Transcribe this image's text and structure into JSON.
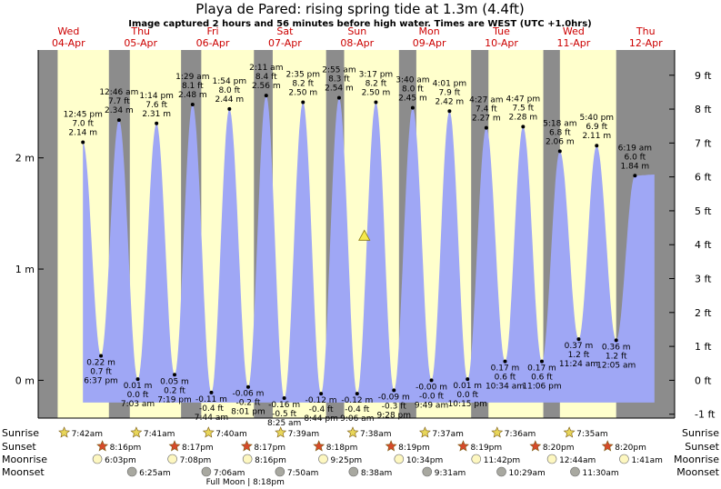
{
  "header": {
    "title": "Playa de Pared: rising  spring tide at 1.3m (4.4ft)",
    "subtitle": "Image captured 2 hours and 56 minutes before high water. Times are WEST (UTC +1.0hrs)"
  },
  "chart_data": {
    "type": "area",
    "days": [
      {
        "name": "Wed",
        "date": "04-Apr"
      },
      {
        "name": "Thu",
        "date": "05-Apr"
      },
      {
        "name": "Fri",
        "date": "06-Apr"
      },
      {
        "name": "Sat",
        "date": "07-Apr"
      },
      {
        "name": "Sun",
        "date": "08-Apr"
      },
      {
        "name": "Mon",
        "date": "09-Apr"
      },
      {
        "name": "Tue",
        "date": "10-Apr"
      },
      {
        "name": "Wed",
        "date": "11-Apr"
      },
      {
        "name": "Thu",
        "date": "12-Apr"
      }
    ],
    "y_left_ticks": [
      {
        "v": 0,
        "label": "0 m"
      },
      {
        "v": 1,
        "label": "1 m"
      },
      {
        "v": 2,
        "label": "2 m"
      }
    ],
    "y_right_ticks": [
      "-1 ft",
      "0 ft",
      "1 ft",
      "2 ft",
      "3 ft",
      "4 ft",
      "5 ft",
      "6 ft",
      "7 ft",
      "8 ft",
      "9 ft"
    ],
    "ylim_m": [
      -0.34,
      2.97
    ],
    "xlim_days": [
      -0.42,
      8.4
    ],
    "current_marker": {
      "t": 4.1,
      "h": 1.3
    },
    "extremes": [
      {
        "t": 0.2,
        "h": 2.14,
        "high": true,
        "labels": [
          "12:45 pm",
          "7.0 ft",
          "2.14 m"
        ]
      },
      {
        "t": 0.45,
        "h": 0.22,
        "high": false,
        "labels": [
          "0.22 m",
          "0.7 ft",
          "6:37 pm"
        ]
      },
      {
        "t": 0.7,
        "h": 2.34,
        "high": true,
        "labels": [
          "12:46 am",
          "7.7 ft",
          "2.34 m"
        ]
      },
      {
        "t": 0.96,
        "h": 0.01,
        "high": false,
        "labels": [
          "0.01 m",
          "0.0 ft",
          "7:03 am"
        ]
      },
      {
        "t": 1.22,
        "h": 2.31,
        "high": true,
        "labels": [
          "1:14 pm",
          "7.6 ft",
          "2.31 m"
        ]
      },
      {
        "t": 1.47,
        "h": 0.05,
        "high": false,
        "labels": [
          "0.05 m",
          "0.2 ft",
          "7:19 pm"
        ]
      },
      {
        "t": 1.72,
        "h": 2.48,
        "high": true,
        "labels": [
          "1:29 am",
          "8.1 ft",
          "2.48 m"
        ]
      },
      {
        "t": 1.98,
        "h": -0.11,
        "high": false,
        "labels": [
          "-0.11 m",
          "-0.4 ft",
          "7:44 am"
        ]
      },
      {
        "t": 2.23,
        "h": 2.44,
        "high": true,
        "labels": [
          "1:54 pm",
          "8.0 ft",
          "2.44 m"
        ]
      },
      {
        "t": 2.49,
        "h": -0.06,
        "high": false,
        "labels": [
          "-0.06 m",
          "-0.2 ft",
          "8:01 pm"
        ]
      },
      {
        "t": 2.74,
        "h": 2.56,
        "high": true,
        "labels": [
          "2:11 am",
          "8.4 ft",
          "2.56 m"
        ]
      },
      {
        "t": 2.99,
        "h": -0.16,
        "high": false,
        "labels": [
          "-0.16 m",
          "-0.5 ft",
          "8:25 am"
        ]
      },
      {
        "t": 3.25,
        "h": 2.5,
        "high": true,
        "labels": [
          "2:35 pm",
          "8.2 ft",
          "2.50 m"
        ]
      },
      {
        "t": 3.5,
        "h": -0.12,
        "high": false,
        "labels": [
          "-0.12 m",
          "-0.4 ft",
          "8:44 pm"
        ]
      },
      {
        "t": 3.75,
        "h": 2.54,
        "high": true,
        "labels": [
          "2:55 am",
          "8.3 ft",
          "2.54 m"
        ]
      },
      {
        "t": 4.0,
        "h": -0.12,
        "high": false,
        "labels": [
          "-0.12 m",
          "-0.4 ft",
          "9:06 am"
        ]
      },
      {
        "t": 4.26,
        "h": 2.5,
        "high": true,
        "labels": [
          "3:17 pm",
          "8.2 ft",
          "2.50 m"
        ]
      },
      {
        "t": 4.51,
        "h": -0.09,
        "high": false,
        "labels": [
          "-0.09 m",
          "-0.3 ft",
          "9:28 pm"
        ]
      },
      {
        "t": 4.77,
        "h": 2.45,
        "high": true,
        "labels": [
          "3:40 am",
          "8.0 ft",
          "2.45 m"
        ]
      },
      {
        "t": 5.03,
        "h": -0.0,
        "high": false,
        "labels": [
          "-0.00 m",
          "-0.0 ft",
          "9:49 am"
        ]
      },
      {
        "t": 5.28,
        "h": 2.42,
        "high": true,
        "labels": [
          "4:01 pm",
          "7.9 ft",
          "2.42 m"
        ]
      },
      {
        "t": 5.53,
        "h": 0.01,
        "high": false,
        "labels": [
          "0.01 m",
          "0.0 ft",
          "10:15 pm"
        ]
      },
      {
        "t": 5.79,
        "h": 2.27,
        "high": true,
        "labels": [
          "4:27 am",
          "7.4 ft",
          "2.27 m"
        ]
      },
      {
        "t": 6.05,
        "h": 0.17,
        "high": false,
        "labels": [
          "0.17 m",
          "0.6 ft",
          "10:34 am"
        ]
      },
      {
        "t": 6.3,
        "h": 2.28,
        "high": true,
        "labels": [
          "4:47 pm",
          "7.5 ft",
          "2.28 m"
        ]
      },
      {
        "t": 6.56,
        "h": 0.17,
        "high": false,
        "labels": [
          "0.17 m",
          "0.6 ft",
          "11:06 pm"
        ]
      },
      {
        "t": 6.81,
        "h": 2.06,
        "high": true,
        "labels": [
          "5:18 am",
          "6.8 ft",
          "2.06 m"
        ]
      },
      {
        "t": 7.07,
        "h": 0.37,
        "high": false,
        "labels": [
          "0.37 m",
          "1.2 ft",
          "11:24 am"
        ]
      },
      {
        "t": 7.32,
        "h": 2.11,
        "high": true,
        "labels": [
          "5:40 pm",
          "6.9 ft",
          "2.11 m"
        ]
      },
      {
        "t": 7.59,
        "h": 0.36,
        "high": false,
        "labels": [
          "0.36 m",
          "1.2 ft",
          "12:05 am"
        ]
      },
      {
        "t": 7.85,
        "h": 1.84,
        "high": true,
        "labels": [
          "6:19 am",
          "6.0 ft",
          "1.84 m"
        ]
      }
    ],
    "end_point": {
      "t": 8.12,
      "h": 1.85
    },
    "night_bands": [
      {
        "start": -0.42,
        "end": -0.15
      },
      {
        "start": 0.56,
        "end": 0.85
      },
      {
        "start": 1.56,
        "end": 1.84
      },
      {
        "start": 2.57,
        "end": 2.83
      },
      {
        "start": 3.57,
        "end": 3.82
      },
      {
        "start": 4.58,
        "end": 4.82
      },
      {
        "start": 5.58,
        "end": 5.82
      },
      {
        "start": 6.58,
        "end": 6.81
      },
      {
        "start": 7.59,
        "end": 8.4
      }
    ]
  },
  "rows": {
    "sunrise": {
      "label": "Sunrise",
      "times": [
        {
          "t": -0.06,
          "text": "7:42am"
        },
        {
          "t": 0.94,
          "text": "7:41am"
        },
        {
          "t": 1.94,
          "text": "7:40am"
        },
        {
          "t": 2.94,
          "text": "7:39am"
        },
        {
          "t": 3.94,
          "text": "7:38am"
        },
        {
          "t": 4.94,
          "text": "7:37am"
        },
        {
          "t": 5.94,
          "text": "7:36am"
        },
        {
          "t": 6.94,
          "text": "7:35am"
        }
      ]
    },
    "sunset": {
      "label": "Sunset",
      "times": [
        {
          "t": 0.47,
          "text": "8:16pm"
        },
        {
          "t": 1.47,
          "text": "8:17pm"
        },
        {
          "t": 2.47,
          "text": "8:17pm"
        },
        {
          "t": 3.47,
          "text": "8:18pm"
        },
        {
          "t": 4.47,
          "text": "8:19pm"
        },
        {
          "t": 5.47,
          "text": "8:19pm"
        },
        {
          "t": 6.47,
          "text": "8:20pm"
        },
        {
          "t": 7.47,
          "text": "8:20pm"
        }
      ]
    },
    "moonrise": {
      "label": "Moonrise",
      "times": [
        {
          "t": 0.4,
          "text": "6:03pm"
        },
        {
          "t": 1.44,
          "text": "7:08pm"
        },
        {
          "t": 2.48,
          "text": "8:16pm"
        },
        {
          "t": 3.53,
          "text": "9:25pm"
        },
        {
          "t": 4.58,
          "text": "10:34pm"
        },
        {
          "t": 5.65,
          "text": "11:42pm"
        },
        {
          "t": 6.7,
          "text": "12:44am"
        },
        {
          "t": 7.7,
          "text": "1:41am"
        }
      ]
    },
    "moonset": {
      "label": "Moonset",
      "times": [
        {
          "t": 0.88,
          "text": "6:25am"
        },
        {
          "t": 1.91,
          "text": "7:06am"
        },
        {
          "t": 2.93,
          "text": "7:50am"
        },
        {
          "t": 3.95,
          "text": "8:38am"
        },
        {
          "t": 4.97,
          "text": "9:31am"
        },
        {
          "t": 6.0,
          "text": "10:29am"
        },
        {
          "t": 7.02,
          "text": "11:30am"
        }
      ]
    },
    "full_moon_note": "Full Moon | 8:18pm"
  },
  "colors": {
    "night": "#8c8c8c",
    "day": "#ffffcc",
    "water": "#9fa7f5",
    "star_sunrise": "#e8d65a",
    "star_sunset": "#d64a2a",
    "moon_rise": "#fdf7c0",
    "moon_set": "#a8a8a0",
    "marker": "#f5e94b"
  }
}
